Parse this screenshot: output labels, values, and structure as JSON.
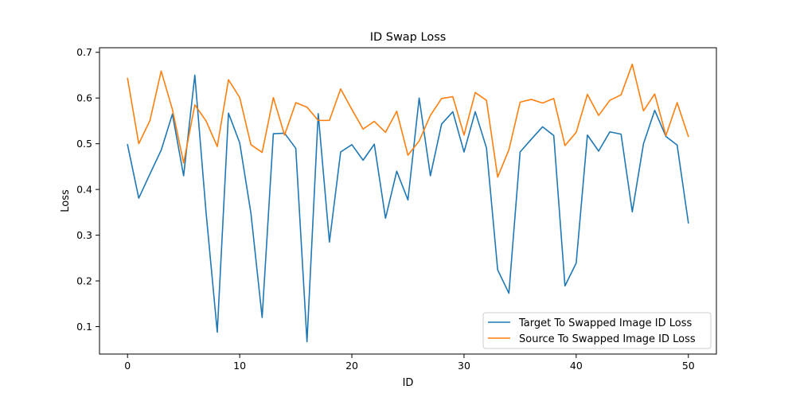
{
  "chart_data": {
    "type": "line",
    "title": "ID Swap Loss",
    "xlabel": "ID",
    "ylabel": "Loss",
    "xlim": [
      -2.5,
      52.5
    ],
    "ylim": [
      0.04,
      0.71
    ],
    "xticks": [
      0,
      10,
      20,
      30,
      40,
      50
    ],
    "yticks": [
      0.1,
      0.2,
      0.3,
      0.4,
      0.5,
      0.6,
      0.7
    ],
    "grid": false,
    "legend_position": "lower-right",
    "x": [
      0,
      1,
      2,
      3,
      4,
      5,
      6,
      7,
      8,
      9,
      10,
      11,
      12,
      13,
      14,
      15,
      16,
      17,
      18,
      19,
      20,
      21,
      22,
      23,
      24,
      25,
      26,
      27,
      28,
      29,
      30,
      31,
      32,
      33,
      34,
      35,
      36,
      37,
      38,
      39,
      40,
      41,
      42,
      43,
      44,
      45,
      46,
      47,
      48,
      49,
      50
    ],
    "series": [
      {
        "name": "Target To Swapped Image ID Loss",
        "color": "#1f77b4",
        "values": [
          0.498,
          0.381,
          0.434,
          0.486,
          0.565,
          0.43,
          0.65,
          0.35,
          0.088,
          0.567,
          0.502,
          0.348,
          0.12,
          0.522,
          0.523,
          0.49,
          0.067,
          0.566,
          0.285,
          0.482,
          0.498,
          0.464,
          0.499,
          0.337,
          0.44,
          0.377,
          0.6,
          0.43,
          0.543,
          0.57,
          0.482,
          0.57,
          0.491,
          0.224,
          0.173,
          0.482,
          0.51,
          0.537,
          0.518,
          0.189,
          0.239,
          0.519,
          0.484,
          0.526,
          0.521,
          0.351,
          0.5,
          0.573,
          0.516,
          0.497,
          0.327
        ]
      },
      {
        "name": "Source To Swapped Image ID Loss",
        "color": "#ff7f0e",
        "values": [
          0.643,
          0.5,
          0.551,
          0.659,
          0.575,
          0.458,
          0.585,
          0.55,
          0.494,
          0.64,
          0.601,
          0.498,
          0.481,
          0.601,
          0.519,
          0.59,
          0.58,
          0.551,
          0.551,
          0.62,
          0.575,
          0.532,
          0.549,
          0.525,
          0.571,
          0.475,
          0.506,
          0.562,
          0.599,
          0.603,
          0.519,
          0.612,
          0.595,
          0.427,
          0.487,
          0.591,
          0.597,
          0.589,
          0.599,
          0.496,
          0.525,
          0.608,
          0.562,
          0.595,
          0.607,
          0.674,
          0.572,
          0.609,
          0.518,
          0.59,
          0.516
        ]
      }
    ]
  }
}
